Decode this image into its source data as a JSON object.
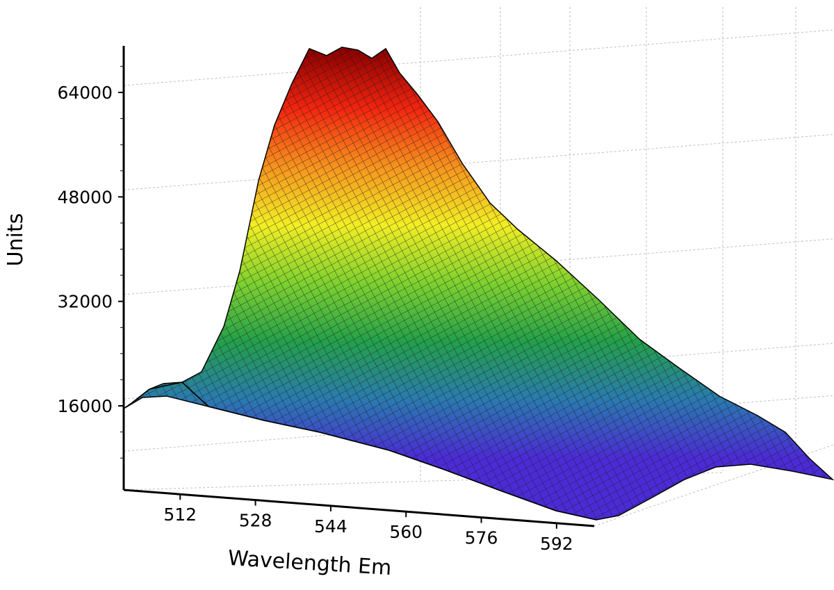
{
  "chart_data": {
    "type": "surface",
    "title": "",
    "ylabel": "Units",
    "xlabel": "Wavelength Em",
    "x_ticks": [
      512,
      528,
      544,
      560,
      576,
      592
    ],
    "z_ticks": [
      16000,
      32000,
      48000,
      64000
    ],
    "x_range": [
      500,
      600
    ],
    "z_range": [
      5000,
      72000
    ],
    "peak": {
      "wavelength": 545,
      "value": 70500
    },
    "colormap": [
      "#4b2bd6",
      "#2a7ab0",
      "#23a04a",
      "#7ed12f",
      "#f2ee24",
      "#f7931e",
      "#f2240f",
      "#8b0000"
    ],
    "grid": true
  }
}
